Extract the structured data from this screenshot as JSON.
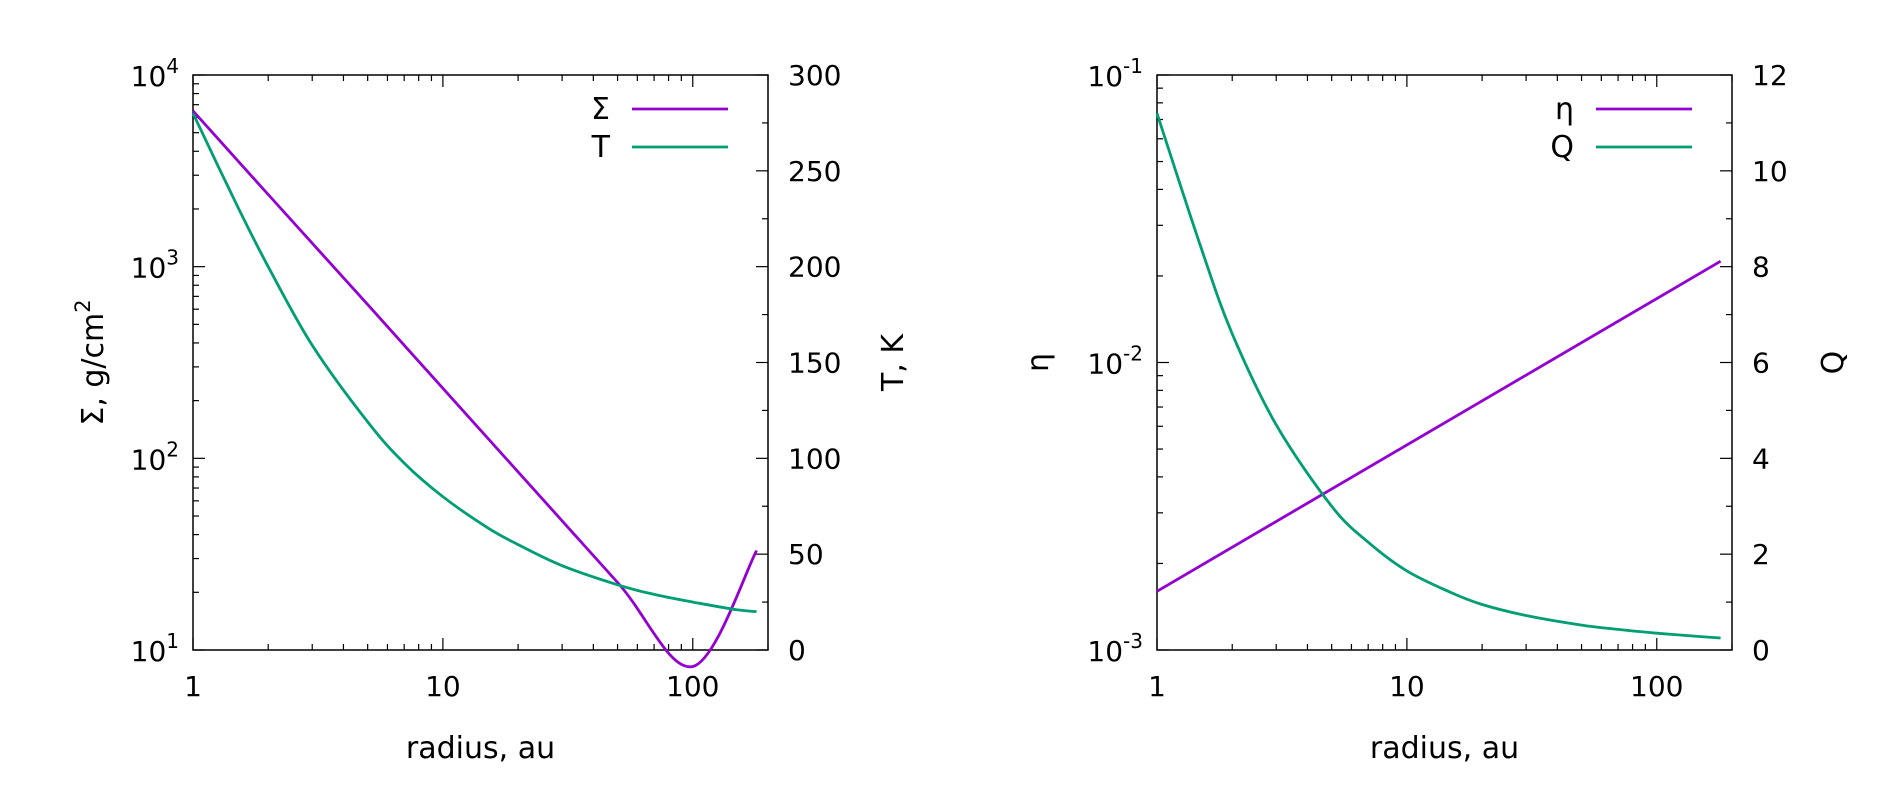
{
  "chart_data": [
    {
      "type": "line",
      "title": "",
      "xlabel": "radius, au",
      "ylabel": "Σ, g/cm²",
      "ylabel_base": "Σ, g/cm",
      "ylabel_sup": "2",
      "y2label": "T, K",
      "xscale": "log",
      "yscale": "log",
      "xlim": [
        1,
        200
      ],
      "ylim": [
        10,
        10000
      ],
      "y2lim": [
        0,
        300
      ],
      "legend_position": "top-right",
      "x_ticks": [
        {
          "value": 1,
          "label": "1"
        },
        {
          "value": 10,
          "label": "10"
        },
        {
          "value": 100,
          "label": "100"
        }
      ],
      "y_ticks": [
        {
          "value": 10,
          "base": "10",
          "exp": "1"
        },
        {
          "value": 100,
          "base": "10",
          "exp": "2"
        },
        {
          "value": 1000,
          "base": "10",
          "exp": "3"
        },
        {
          "value": 10000,
          "base": "10",
          "exp": "4"
        }
      ],
      "y2_ticks": [
        {
          "value": 0,
          "label": "0"
        },
        {
          "value": 50,
          "label": "50"
        },
        {
          "value": 100,
          "label": "100"
        },
        {
          "value": 150,
          "label": "150"
        },
        {
          "value": 200,
          "label": "200"
        },
        {
          "value": 250,
          "label": "250"
        },
        {
          "value": 300,
          "label": "300"
        }
      ],
      "series": [
        {
          "name": "Σ",
          "axis": "left",
          "color": "#9400d3",
          "x": [
            1,
            2,
            5,
            10,
            20,
            50,
            100,
            180
          ],
          "y": [
            6500,
            2380,
            634,
            232,
            85,
            22.5,
            8.2,
            33
          ]
        },
        {
          "name": "T",
          "axis": "right",
          "color": "#009e73",
          "x": [
            1,
            1.5,
            2,
            3,
            5,
            7,
            10,
            15,
            20,
            30,
            50,
            70,
            100,
            150,
            180
          ],
          "y": [
            280,
            232,
            200,
            159,
            119,
            97.5,
            80,
            64,
            55,
            44,
            34,
            29,
            25,
            21,
            20
          ]
        }
      ]
    },
    {
      "type": "line",
      "title": "",
      "xlabel": "radius, au",
      "ylabel": "η",
      "y2label": "Q",
      "xscale": "log",
      "yscale": "log",
      "xlim": [
        1,
        200
      ],
      "ylim": [
        0.001,
        0.1
      ],
      "y2lim": [
        0,
        12
      ],
      "legend_position": "top-right",
      "x_ticks": [
        {
          "value": 1,
          "label": "1"
        },
        {
          "value": 10,
          "label": "10"
        },
        {
          "value": 100,
          "label": "100"
        }
      ],
      "y_ticks": [
        {
          "value": 0.001,
          "base": "10",
          "exp": "-3"
        },
        {
          "value": 0.01,
          "base": "10",
          "exp": "-2"
        },
        {
          "value": 0.1,
          "base": "10",
          "exp": "-1"
        }
      ],
      "y2_ticks": [
        {
          "value": 0,
          "label": "0"
        },
        {
          "value": 2,
          "label": "2"
        },
        {
          "value": 4,
          "label": "4"
        },
        {
          "value": 6,
          "label": "6"
        },
        {
          "value": 8,
          "label": "8"
        },
        {
          "value": 10,
          "label": "10"
        },
        {
          "value": 12,
          "label": "12"
        }
      ],
      "series": [
        {
          "name": "η",
          "axis": "left",
          "color": "#9400d3",
          "x": [
            1,
            180
          ],
          "y": [
            0.0016,
            0.0225
          ]
        },
        {
          "name": "Q",
          "axis": "right",
          "color": "#009e73",
          "x": [
            1,
            1.5,
            2,
            3,
            5,
            7,
            10,
            15,
            20,
            30,
            50,
            70,
            100,
            150,
            180
          ],
          "y": [
            11.2,
            8.4,
            6.6,
            4.7,
            3.0,
            2.25,
            1.65,
            1.2,
            0.95,
            0.72,
            0.52,
            0.43,
            0.35,
            0.28,
            0.25
          ]
        }
      ]
    }
  ]
}
